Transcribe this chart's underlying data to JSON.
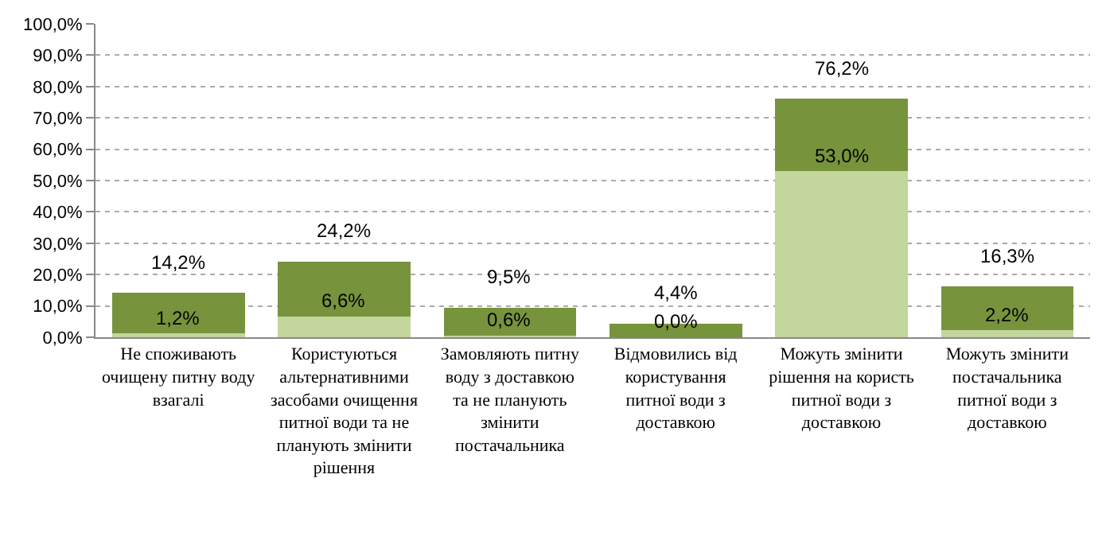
{
  "chart_data": {
    "type": "bar",
    "stacked": true,
    "categories": [
      "Не споживають очищену питну воду взагалі",
      "Користуються альтернативними засобами очищення питної води та не планують змінити рішення",
      "Замовляють питну воду з доставкою та не планують змінити постачальника",
      "Відмовились від користування питної води з доставкою",
      "Можуть змінити рішення на користь питної води з доставкою",
      "Можуть змінити постачальника питної води з доставкою"
    ],
    "series": [
      {
        "color": "#c3d69b",
        "values": [
          1.2,
          6.6,
          0.6,
          0.0,
          53.0,
          2.2
        ],
        "value_labels": [
          "1,2%",
          "6,6%",
          "0,6%",
          "0,0%",
          "53,0%",
          "2,2%"
        ]
      },
      {
        "color": "#77933c",
        "values": [
          13.0,
          17.6,
          8.9,
          4.4,
          23.2,
          14.1
        ]
      }
    ],
    "totals": [
      "14,2%",
      "24,2%",
      "9,5%",
      "4,4%",
      "76,2%",
      "16,3%"
    ],
    "ylim": [
      0,
      100
    ],
    "yticks": [
      {
        "value": 0,
        "label": "0,0%"
      },
      {
        "value": 10,
        "label": "10,0%"
      },
      {
        "value": 20,
        "label": "20,0%"
      },
      {
        "value": 30,
        "label": "30,0%"
      },
      {
        "value": 40,
        "label": "40,0%"
      },
      {
        "value": 50,
        "label": "50,0%"
      },
      {
        "value": 60,
        "label": "60,0%"
      },
      {
        "value": 70,
        "label": "70,0%"
      },
      {
        "value": 80,
        "label": "80,0%"
      },
      {
        "value": 90,
        "label": "90,0%"
      },
      {
        "value": 100,
        "label": "100,0%"
      }
    ],
    "grid": "y"
  }
}
